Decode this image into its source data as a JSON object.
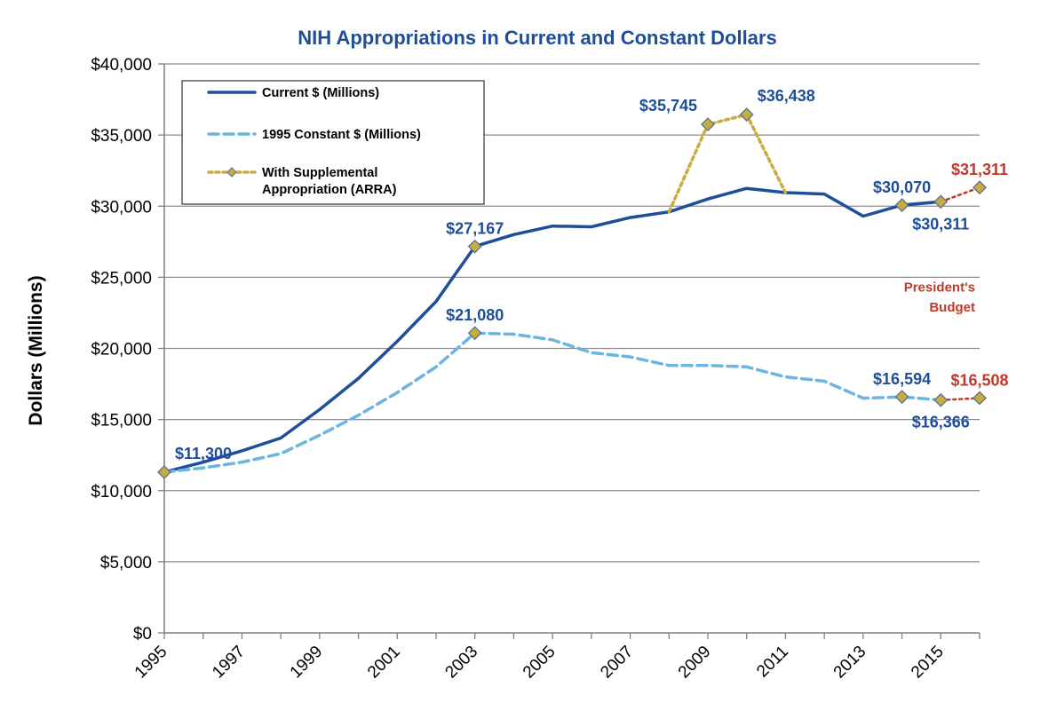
{
  "chart_data": {
    "type": "line",
    "title": "NIH Appropriations  in Current and Constant Dollars",
    "ylabel": "Dollars (Millions)",
    "xlabel": "",
    "ylim": [
      0,
      40000
    ],
    "yticks": [
      0,
      5000,
      10000,
      15000,
      20000,
      25000,
      30000,
      35000,
      40000
    ],
    "ytick_labels": [
      "$0",
      "$5,000",
      "$10,000",
      "$15,000",
      "$20,000",
      "$25,000",
      "$30,000",
      "$35,000",
      "$40,000"
    ],
    "xlim": [
      1995,
      2016
    ],
    "xticks": [
      1995,
      1997,
      1999,
      2001,
      2003,
      2005,
      2007,
      2009,
      2011,
      2013,
      2015
    ],
    "xtick_labels": [
      "1995",
      "1997",
      "1999",
      "2001",
      "2003",
      "2005",
      "2007",
      "2009",
      "2011",
      "2013",
      "2015"
    ],
    "grid": true,
    "legend_position": "top-left",
    "colors": {
      "current": "#1f4e99",
      "constant": "#6bb5e0",
      "arra": "#c8ad3e",
      "budget": "#c0392b",
      "marker": "#c8ad3e",
      "marker_edge": "#5a6f8f"
    },
    "series": [
      {
        "name": "Current $ (Millions)",
        "style": "solid",
        "x": [
          1995,
          1996,
          1997,
          1998,
          1999,
          2000,
          2001,
          2002,
          2003,
          2004,
          2005,
          2006,
          2007,
          2008,
          2009,
          2010,
          2011,
          2012,
          2013,
          2014,
          2015
        ],
        "values": [
          11300,
          12000,
          12800,
          13700,
          15700,
          17900,
          20500,
          23300,
          27167,
          28000,
          28600,
          28550,
          29200,
          29600,
          30500,
          31250,
          30950,
          30850,
          29300,
          30070,
          30311
        ]
      },
      {
        "name": "1995 Constant $ (Millions)",
        "style": "dashed",
        "x": [
          1995,
          1996,
          1997,
          1998,
          1999,
          2000,
          2001,
          2002,
          2003,
          2004,
          2005,
          2006,
          2007,
          2008,
          2009,
          2010,
          2011,
          2012,
          2013,
          2014,
          2015
        ],
        "values": [
          11300,
          11600,
          12000,
          12600,
          13900,
          15300,
          16900,
          18700,
          21080,
          21000,
          20600,
          19700,
          19400,
          18800,
          18800,
          18700,
          18000,
          17700,
          16500,
          16594,
          16366
        ]
      },
      {
        "name": "With Supplemental Appropriation (ARRA)",
        "style": "dotted",
        "x": [
          2008,
          2009,
          2010,
          2011
        ],
        "values": [
          29600,
          35745,
          36438,
          30950
        ]
      },
      {
        "name": "President's Budget (Current)",
        "style": "dotted-red",
        "x": [
          2015,
          2016
        ],
        "values": [
          30311,
          31311
        ]
      },
      {
        "name": "President's Budget (Constant)",
        "style": "dotted-red",
        "x": [
          2015,
          2016
        ],
        "values": [
          16366,
          16508
        ]
      }
    ],
    "markers": [
      {
        "x": 1995,
        "y": 11300
      },
      {
        "x": 2003,
        "y": 27167
      },
      {
        "x": 2003,
        "y": 21080
      },
      {
        "x": 2009,
        "y": 35745
      },
      {
        "x": 2010,
        "y": 36438
      },
      {
        "x": 2014,
        "y": 30070
      },
      {
        "x": 2015,
        "y": 30311
      },
      {
        "x": 2016,
        "y": 31311
      },
      {
        "x": 2014,
        "y": 16594
      },
      {
        "x": 2015,
        "y": 16366
      },
      {
        "x": 2016,
        "y": 16508
      }
    ],
    "data_labels": [
      {
        "text": "$11,300",
        "x": 1995,
        "y": 11300,
        "pos": "above-right",
        "color": "blue"
      },
      {
        "text": "$27,167",
        "x": 2003,
        "y": 27167,
        "pos": "above",
        "color": "blue"
      },
      {
        "text": "$21,080",
        "x": 2003,
        "y": 21080,
        "pos": "above",
        "color": "blue"
      },
      {
        "text": "$35,745",
        "x": 2009,
        "y": 35745,
        "pos": "above-left",
        "color": "blue"
      },
      {
        "text": "$36,438",
        "x": 2010,
        "y": 36438,
        "pos": "above-right",
        "color": "blue"
      },
      {
        "text": "$30,070",
        "x": 2014,
        "y": 30070,
        "pos": "above",
        "color": "blue"
      },
      {
        "text": "$30,311",
        "x": 2015,
        "y": 30311,
        "pos": "below",
        "color": "blue"
      },
      {
        "text": "$31,311",
        "x": 2016,
        "y": 31311,
        "pos": "above",
        "color": "red"
      },
      {
        "text": "$16,594",
        "x": 2014,
        "y": 16594,
        "pos": "above",
        "color": "blue"
      },
      {
        "text": "$16,366",
        "x": 2015,
        "y": 16366,
        "pos": "below",
        "color": "blue"
      },
      {
        "text": "$16,508",
        "x": 2016,
        "y": 16508,
        "pos": "above",
        "color": "red"
      }
    ],
    "annotations": [
      {
        "text": "President's",
        "x": 2016,
        "y": 24000
      },
      {
        "text": "Budget",
        "x": 2016,
        "y": 22600
      }
    ],
    "legend": [
      {
        "label": "Current $ (Millions)",
        "style": "solid"
      },
      {
        "label": "1995 Constant $ (Millions)",
        "style": "dashed"
      },
      {
        "label": "With Supplemental",
        "label2": "Appropriation (ARRA)",
        "style": "dotted"
      }
    ]
  }
}
